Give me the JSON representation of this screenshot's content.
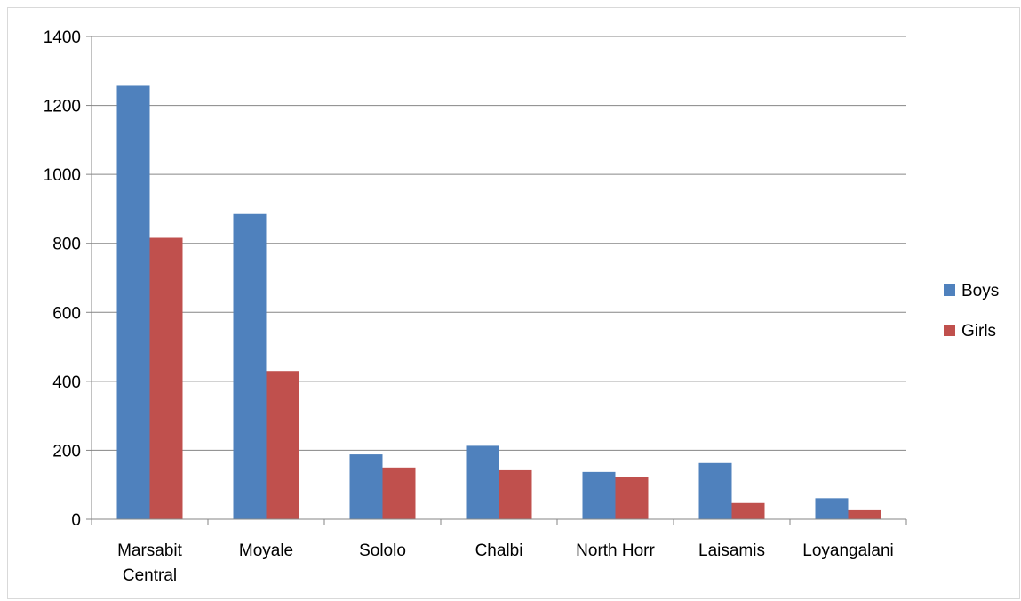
{
  "chart_data": {
    "type": "bar",
    "categories": [
      [
        "Marsabit",
        "Central"
      ],
      [
        "Moyale"
      ],
      [
        "Sololo"
      ],
      [
        "Chalbi"
      ],
      [
        "North Horr"
      ],
      [
        "Laisamis"
      ],
      [
        "Loyangalani"
      ]
    ],
    "series": [
      {
        "name": "Boys",
        "color": "#4f81bd",
        "values": [
          1257,
          885,
          188,
          213,
          137,
          163,
          61
        ]
      },
      {
        "name": "Girls",
        "color": "#c0504d",
        "values": [
          816,
          430,
          150,
          142,
          123,
          47,
          26
        ]
      }
    ],
    "ylim": [
      0,
      1400
    ],
    "yticks": [
      0,
      200,
      400,
      600,
      800,
      1000,
      1200,
      1400
    ],
    "grid": true,
    "legend_position": "right"
  }
}
